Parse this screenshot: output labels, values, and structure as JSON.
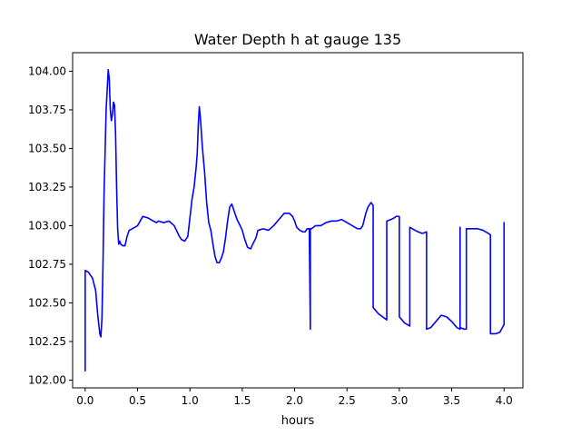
{
  "chart_data": {
    "type": "line",
    "title": "Water Depth h at gauge 135",
    "xlabel": "hours",
    "ylabel": "",
    "xlim": [
      -0.12,
      4.18
    ],
    "ylim": [
      101.95,
      104.12
    ],
    "xticks": [
      0.0,
      0.5,
      1.0,
      1.5,
      2.0,
      2.5,
      3.0,
      3.5,
      4.0
    ],
    "xtick_labels": [
      "0.0",
      "0.5",
      "1.0",
      "1.5",
      "2.0",
      "2.5",
      "3.0",
      "3.5",
      "4.0"
    ],
    "yticks": [
      102.0,
      102.25,
      102.5,
      102.75,
      103.0,
      103.25,
      103.5,
      103.75,
      104.0
    ],
    "ytick_labels": [
      "102.00",
      "102.25",
      "102.50",
      "102.75",
      "103.00",
      "103.25",
      "103.50",
      "103.75",
      "104.00"
    ],
    "grid": false,
    "series": [
      {
        "color": "#0000ff",
        "x": [
          0.0,
          0.0,
          0.03,
          0.07,
          0.1,
          0.12,
          0.14,
          0.15,
          0.16,
          0.17,
          0.18,
          0.2,
          0.22,
          0.23,
          0.24,
          0.25,
          0.26,
          0.27,
          0.28,
          0.29,
          0.3,
          0.31,
          0.32,
          0.33,
          0.34,
          0.36,
          0.38,
          0.4,
          0.42,
          0.45,
          0.5,
          0.55,
          0.6,
          0.65,
          0.68,
          0.7,
          0.75,
          0.8,
          0.85,
          0.9,
          0.92,
          0.95,
          0.98,
          1.0,
          1.02,
          1.04,
          1.06,
          1.07,
          1.08,
          1.09,
          1.1,
          1.12,
          1.14,
          1.16,
          1.18,
          1.2,
          1.22,
          1.24,
          1.26,
          1.28,
          1.3,
          1.32,
          1.34,
          1.36,
          1.38,
          1.4,
          1.42,
          1.45,
          1.48,
          1.5,
          1.52,
          1.55,
          1.58,
          1.6,
          1.63,
          1.65,
          1.7,
          1.75,
          1.8,
          1.85,
          1.9,
          1.95,
          1.98,
          2.0,
          2.02,
          2.05,
          2.08,
          2.1,
          2.12,
          2.14,
          2.15,
          2.15,
          2.16,
          2.16,
          2.2,
          2.25,
          2.3,
          2.35,
          2.4,
          2.45,
          2.5,
          2.55,
          2.6,
          2.63,
          2.65,
          2.68,
          2.7,
          2.73,
          2.75,
          2.75,
          2.8,
          2.88,
          2.88,
          2.92,
          2.95,
          2.97,
          3.0,
          3.0,
          3.05,
          3.1,
          3.1,
          3.15,
          3.18,
          3.22,
          3.26,
          3.26,
          3.3,
          3.35,
          3.4,
          3.45,
          3.5,
          3.55,
          3.58,
          3.58,
          3.58,
          3.62,
          3.64,
          3.64,
          3.7,
          3.75,
          3.8,
          3.85,
          3.87,
          3.87,
          3.92,
          3.96,
          4.0,
          4.0
        ],
        "y": [
          102.06,
          102.71,
          102.7,
          102.66,
          102.58,
          102.42,
          102.3,
          102.28,
          102.4,
          102.75,
          103.2,
          103.75,
          104.01,
          103.95,
          103.75,
          103.68,
          103.72,
          103.8,
          103.78,
          103.6,
          103.25,
          102.98,
          102.88,
          102.9,
          102.88,
          102.87,
          102.87,
          102.93,
          102.97,
          102.98,
          103.0,
          103.06,
          103.05,
          103.03,
          103.02,
          103.03,
          103.02,
          103.03,
          103.0,
          102.93,
          102.91,
          102.9,
          102.93,
          103.05,
          103.17,
          103.25,
          103.38,
          103.47,
          103.65,
          103.77,
          103.7,
          103.5,
          103.35,
          103.15,
          103.02,
          102.97,
          102.88,
          102.8,
          102.76,
          102.76,
          102.79,
          102.83,
          102.92,
          103.03,
          103.12,
          103.14,
          103.1,
          103.04,
          103.0,
          102.97,
          102.92,
          102.86,
          102.85,
          102.88,
          102.92,
          102.97,
          102.98,
          102.97,
          103.0,
          103.04,
          103.08,
          103.08,
          103.06,
          103.03,
          102.99,
          102.97,
          102.96,
          102.96,
          102.98,
          102.98,
          102.33,
          102.98,
          102.98,
          102.98,
          103.0,
          103.0,
          103.02,
          103.03,
          103.03,
          103.04,
          103.02,
          103.0,
          102.98,
          102.98,
          103.0,
          103.08,
          103.12,
          103.15,
          103.13,
          102.47,
          102.43,
          102.39,
          103.03,
          103.04,
          103.05,
          103.06,
          103.06,
          102.41,
          102.37,
          102.35,
          102.99,
          102.97,
          102.96,
          102.95,
          102.96,
          102.33,
          102.34,
          102.38,
          102.42,
          102.41,
          102.38,
          102.34,
          102.33,
          102.99,
          102.34,
          102.33,
          102.33,
          102.98,
          102.98,
          102.98,
          102.97,
          102.95,
          102.94,
          102.3,
          102.3,
          102.31,
          102.36,
          103.02
        ]
      }
    ]
  }
}
